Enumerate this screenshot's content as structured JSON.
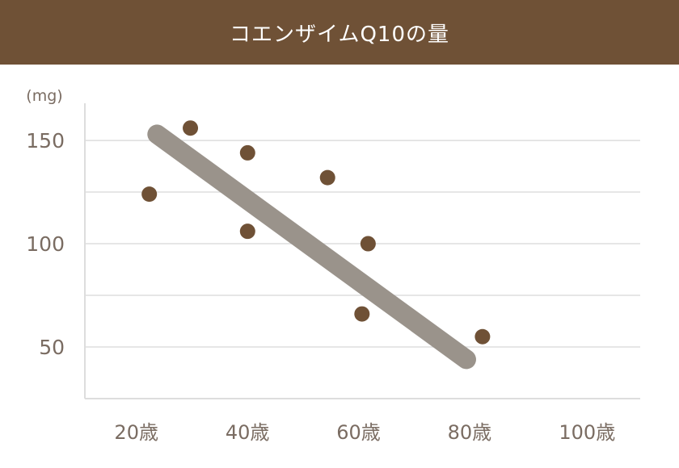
{
  "title": "コエンザイムQ10の量",
  "chart_data": {
    "type": "scatter",
    "title": "コエンザイムQ10の量",
    "ylabel": "(mg)",
    "xlabel": "",
    "x_ticks": [
      20,
      40,
      60,
      80,
      100
    ],
    "x_tick_labels": [
      "20歳",
      "40歳",
      "60歳",
      "80歳",
      "100歳"
    ],
    "y_ticks": [
      50,
      100,
      150
    ],
    "y_tick_labels": [
      "50",
      "100",
      "150"
    ],
    "y_minor_gridlines": [
      75,
      125
    ],
    "xlim": [
      10,
      110
    ],
    "ylim": [
      25,
      168
    ],
    "grid": true,
    "points": [
      {
        "x": 21.6,
        "y": 124
      },
      {
        "x": 29,
        "y": 156
      },
      {
        "x": 39.3,
        "y": 144
      },
      {
        "x": 39.3,
        "y": 106
      },
      {
        "x": 53.7,
        "y": 132
      },
      {
        "x": 61,
        "y": 100
      },
      {
        "x": 59.9,
        "y": 66
      },
      {
        "x": 81.6,
        "y": 55
      }
    ],
    "trend_line": {
      "x": [
        23,
        78.7
      ],
      "y": [
        153,
        44
      ]
    },
    "colors": {
      "points": "#6f5136",
      "trend_line": "#9a938b",
      "grid": "#dddddd",
      "header": "#6f5136"
    }
  }
}
